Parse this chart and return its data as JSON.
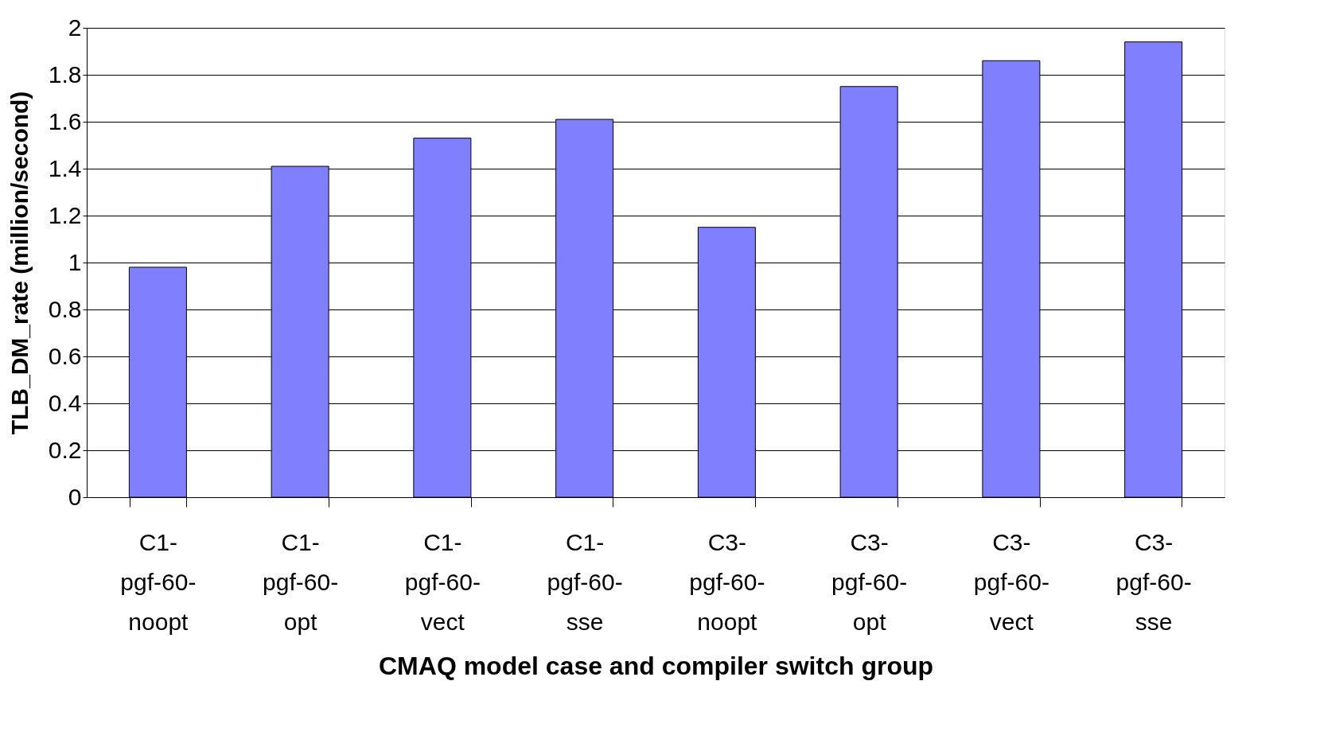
{
  "chart_data": {
    "type": "bar",
    "xlabel": "CMAQ model case and compiler switch group",
    "ylabel": "TLB_DM_rate (million/second)",
    "categories": [
      "C1-pgf-60-noopt",
      "C1-pgf-60-opt",
      "C1-pgf-60-vect",
      "C1-pgf-60-sse",
      "C3-pgf-60-noopt",
      "C3-pgf-60-opt",
      "C3-pgf-60-vect",
      "C3-pgf-60-sse"
    ],
    "values": [
      0.98,
      1.41,
      1.53,
      1.61,
      1.15,
      1.75,
      1.86,
      1.94
    ],
    "color": "#8080ff",
    "ylim": [
      0,
      2
    ],
    "yticks": [
      0,
      0.2,
      0.4,
      0.6,
      0.8,
      1,
      1.2,
      1.4,
      1.6,
      1.8,
      2
    ],
    "grid": "y"
  }
}
